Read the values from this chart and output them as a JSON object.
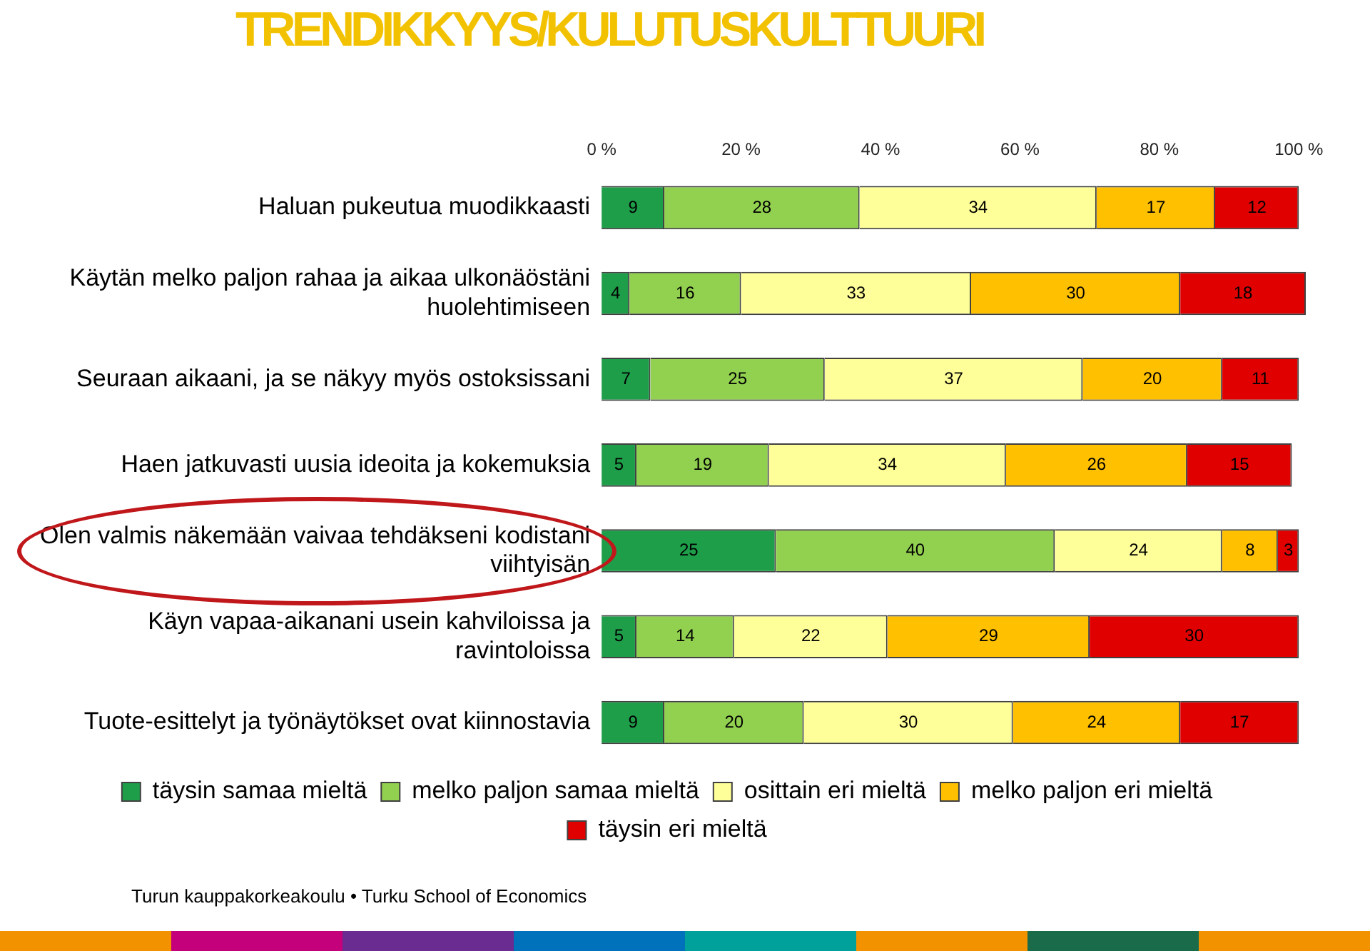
{
  "chart_data": {
    "type": "bar",
    "orientation": "horizontal",
    "stacked": true,
    "title": "TRENDIKKYYS/KULUTUSKULTTUURI",
    "categories": [
      "Haluan pukeutua muodikkaasti",
      "Käytän melko paljon rahaa ja aikaa ulkonäöstäni huolehtimiseen",
      "Seuraan aikaani, ja se näkyy myös ostoksissani",
      "Haen jatkuvasti uusia ideoita ja kokemuksia",
      "Olen valmis näkemään vaivaa tehdäkseni kodistani viihtyisän",
      "Käyn vapaa-aikanani usein kahviloissa ja ravintoloissa",
      "Tuote-esittelyt ja työnäytökset ovat kiinnostavia"
    ],
    "series": [
      {
        "name": "täysin samaa mieltä",
        "color": "#1f9e4a",
        "values": [
          9,
          4,
          7,
          5,
          25,
          5,
          9
        ]
      },
      {
        "name": "melko paljon samaa mieltä",
        "color": "#92d050",
        "values": [
          28,
          16,
          25,
          19,
          40,
          14,
          20
        ]
      },
      {
        "name": "osittain eri mieltä",
        "color": "#ffff99",
        "values": [
          34,
          33,
          37,
          34,
          24,
          22,
          30
        ]
      },
      {
        "name": "melko paljon eri mieltä",
        "color": "#ffc000",
        "values": [
          17,
          30,
          20,
          26,
          8,
          29,
          24
        ]
      },
      {
        "name": "täysin eri mieltä",
        "color": "#e00000",
        "values": [
          12,
          18,
          11,
          15,
          3,
          30,
          17
        ]
      }
    ],
    "xlim": [
      0,
      101
    ],
    "xticks": [
      {
        "value": 0,
        "label": "0 %"
      },
      {
        "value": 20,
        "label": "20 %"
      },
      {
        "value": 40,
        "label": "40 %"
      },
      {
        "value": 60,
        "label": "60 %"
      },
      {
        "value": 80,
        "label": "80 %"
      },
      {
        "value": 100,
        "label": "100 %"
      }
    ],
    "grid": false,
    "legend": "bottom",
    "data_labels": true,
    "annotations": [
      "Turun kauppakorkeakoulu • Turku School of Economics"
    ]
  }
}
